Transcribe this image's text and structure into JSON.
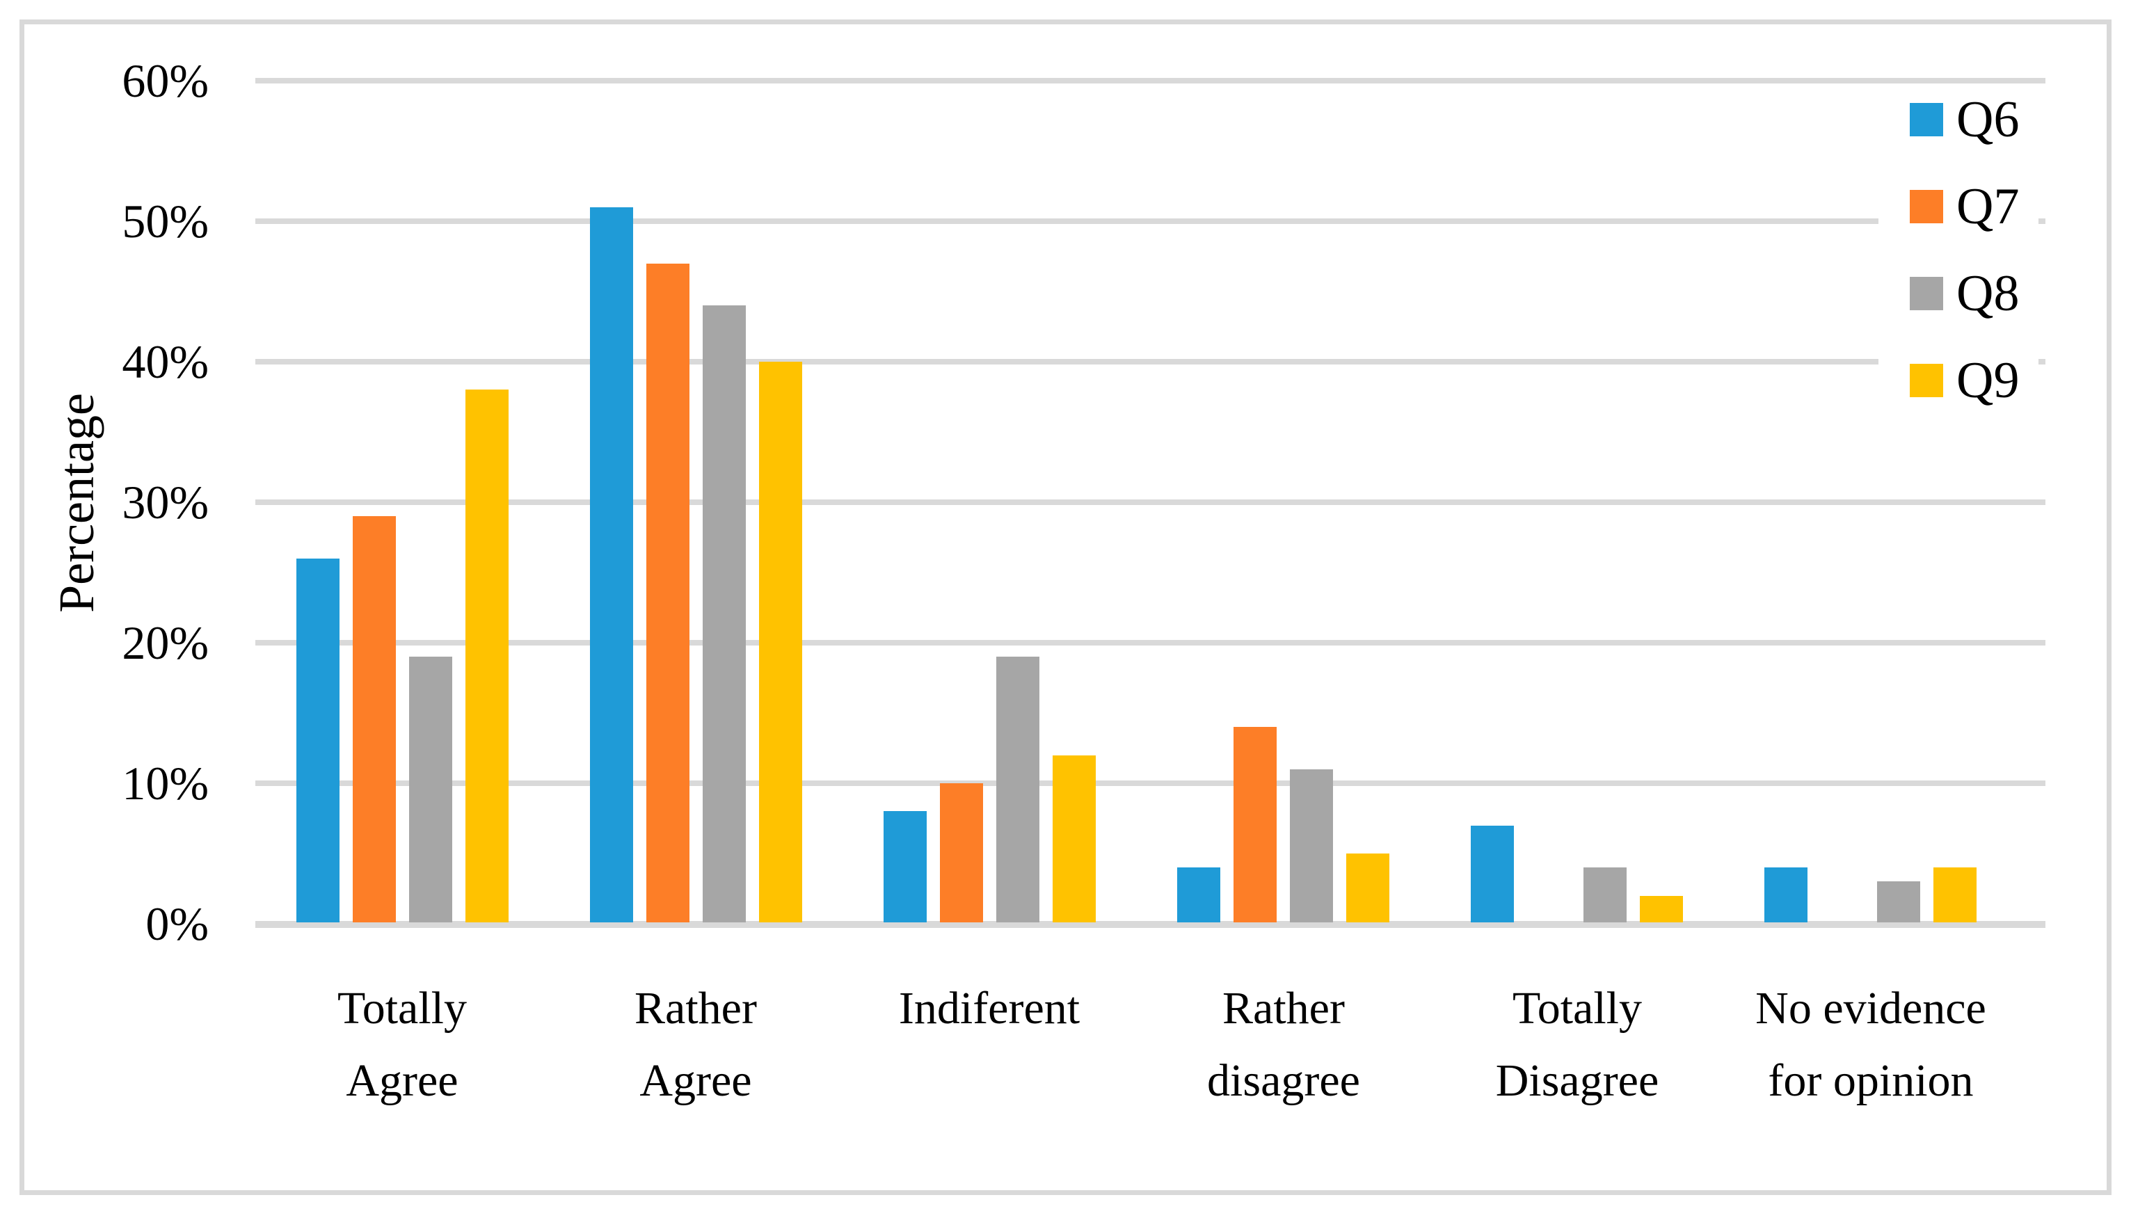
{
  "figure": {
    "background": "#FFFFFF",
    "frame_color": "#D9D9D9",
    "gridline_color": "#D9D9D9"
  },
  "chart_data": {
    "type": "bar",
    "title": "",
    "xlabel": "",
    "ylabel": "Percentage",
    "grid": true,
    "legend_position": "right",
    "categories": [
      "Totally\nAgree",
      "Rather\nAgree",
      "Indiferent",
      "Rather\ndisagree",
      "Totally\nDisagree",
      "No evidence\nfor opinion"
    ],
    "series": [
      {
        "name": "Q6",
        "color": "#1F9BD7",
        "values": [
          26,
          51,
          8,
          4,
          7,
          4
        ]
      },
      {
        "name": "Q7",
        "color": "#FD7E27",
        "values": [
          29,
          47,
          10,
          14,
          0,
          0
        ]
      },
      {
        "name": "Q8",
        "color": "#A6A6A6",
        "values": [
          19,
          44,
          19,
          11,
          4,
          3
        ]
      },
      {
        "name": "Q9",
        "color": "#FFC200",
        "values": [
          38,
          40,
          12,
          5,
          2,
          4
        ]
      }
    ],
    "y_axis": {
      "min": 0,
      "max": 60,
      "step": 10,
      "tick_labels": [
        "0%",
        "10%",
        "20%",
        "30%",
        "40%",
        "50%",
        "60%"
      ]
    }
  }
}
